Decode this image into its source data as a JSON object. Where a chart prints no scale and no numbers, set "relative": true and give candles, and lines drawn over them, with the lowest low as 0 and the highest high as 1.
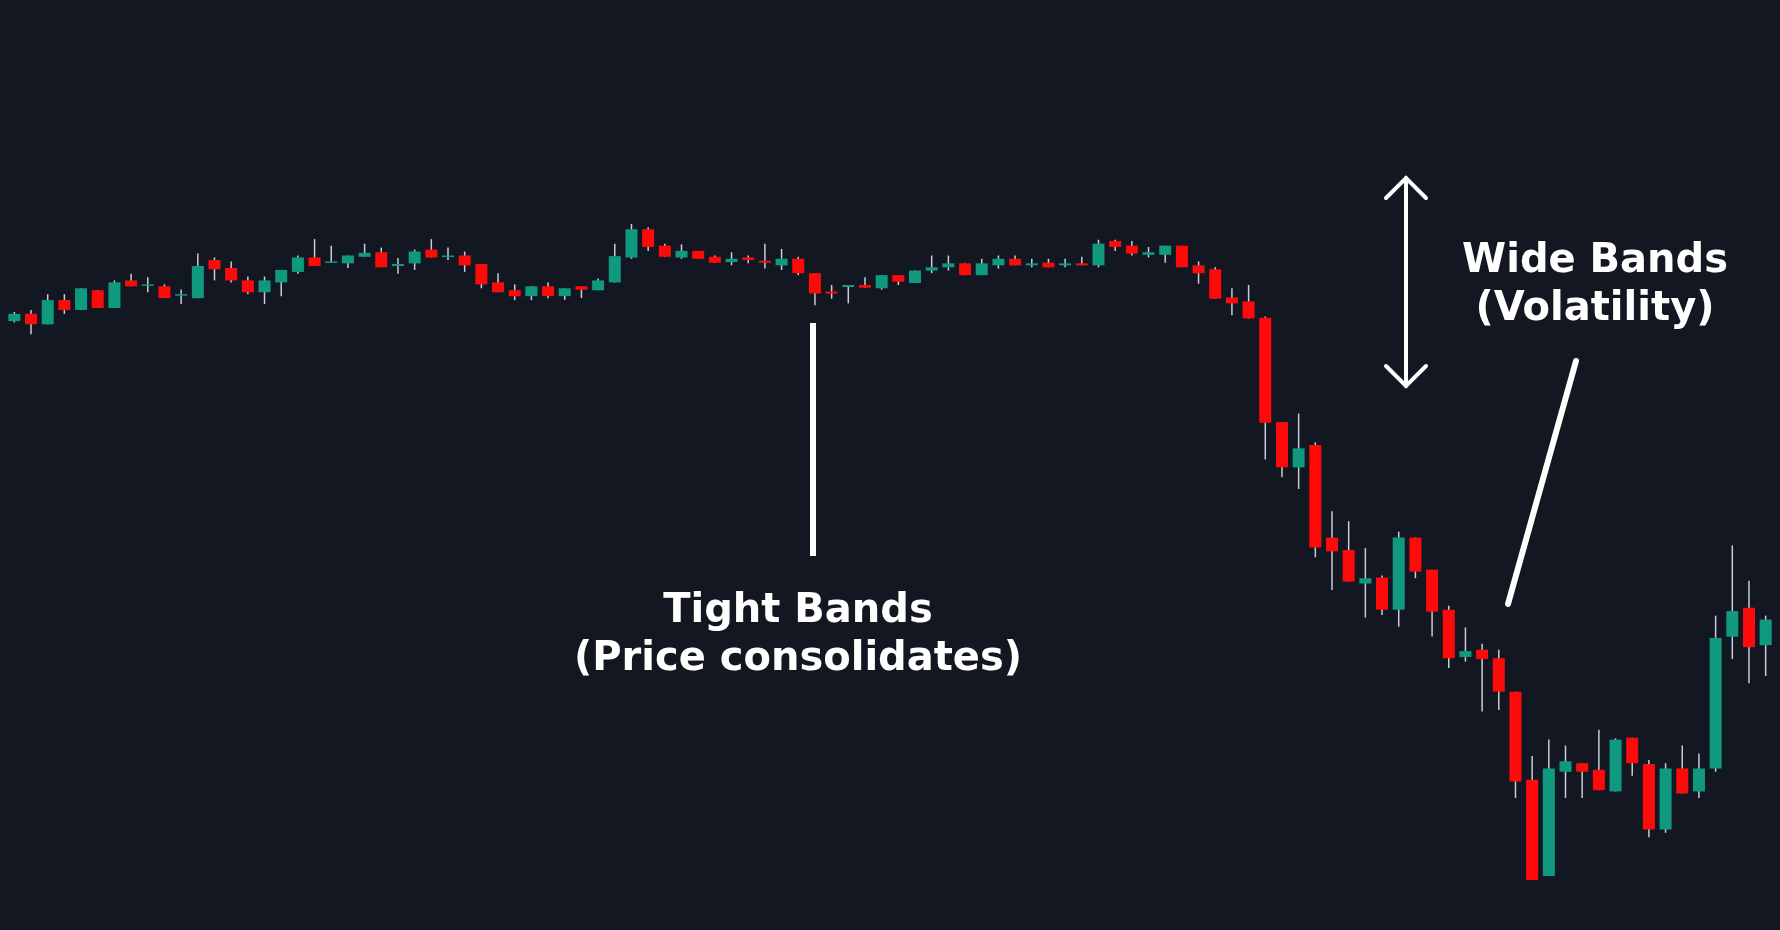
{
  "chart_data": {
    "type": "candlestick",
    "relative": true,
    "annotations": [
      "Tight Bands\n(Price consolidates)",
      "Wide Bands\n(Volatility)"
    ],
    "categories": [
      null,
      null,
      null,
      null,
      null,
      null,
      null,
      null,
      null,
      null,
      null,
      null,
      null,
      null,
      null,
      null,
      null,
      null,
      null,
      null,
      null,
      null,
      null,
      null,
      null,
      null,
      null,
      null,
      null,
      null,
      null,
      null,
      null,
      null,
      null,
      null,
      null,
      null,
      null,
      null,
      null,
      null,
      null,
      null,
      null,
      null,
      null,
      null,
      null,
      null,
      null,
      null,
      null,
      null,
      null,
      null,
      null,
      null,
      null,
      null,
      null,
      null,
      null,
      null,
      null,
      null,
      null,
      null,
      null,
      null,
      null,
      null,
      null,
      null,
      null,
      null,
      null,
      null,
      null,
      null,
      null,
      null,
      null,
      null,
      null,
      null,
      null,
      null,
      null,
      null,
      null,
      null,
      null,
      null,
      null,
      null,
      null,
      null,
      null,
      null,
      null,
      null,
      null,
      null,
      null,
      null
    ],
    "ohlc": [
      [
        0.852,
        0.866,
        0.85,
        0.863
      ],
      [
        0.863,
        0.869,
        0.832,
        0.847
      ],
      [
        0.847,
        0.893,
        0.847,
        0.884
      ],
      [
        0.884,
        0.893,
        0.863,
        0.869
      ],
      [
        0.869,
        0.902,
        0.869,
        0.902
      ],
      [
        0.899,
        0.899,
        0.872,
        0.872
      ],
      [
        0.872,
        0.914,
        0.872,
        0.911
      ],
      [
        0.914,
        0.924,
        0.905,
        0.905
      ],
      [
        0.906,
        0.919,
        0.896,
        0.908
      ],
      [
        0.905,
        0.908,
        0.887,
        0.887
      ],
      [
        0.891,
        0.9,
        0.878,
        0.893
      ],
      [
        0.887,
        0.955,
        0.887,
        0.936
      ],
      [
        0.945,
        0.949,
        0.914,
        0.931
      ],
      [
        0.933,
        0.943,
        0.911,
        0.914
      ],
      [
        0.914,
        0.92,
        0.893,
        0.896
      ],
      [
        0.896,
        0.92,
        0.878,
        0.914
      ],
      [
        0.911,
        0.93,
        0.89,
        0.93
      ],
      [
        0.927,
        0.952,
        0.924,
        0.949
      ],
      [
        0.949,
        0.977,
        0.936,
        0.936
      ],
      [
        0.941,
        0.967,
        0.941,
        0.943
      ],
      [
        0.94,
        0.952,
        0.933,
        0.952
      ],
      [
        0.95,
        0.97,
        0.95,
        0.956
      ],
      [
        0.957,
        0.964,
        0.934,
        0.934
      ],
      [
        0.936,
        0.948,
        0.924,
        0.939
      ],
      [
        0.94,
        0.961,
        0.93,
        0.958
      ],
      [
        0.961,
        0.977,
        0.949,
        0.949
      ],
      [
        0.95,
        0.964,
        0.945,
        0.952
      ],
      [
        0.952,
        0.958,
        0.927,
        0.937
      ],
      [
        0.939,
        0.939,
        0.902,
        0.908
      ],
      [
        0.911,
        0.925,
        0.896,
        0.896
      ],
      [
        0.899,
        0.908,
        0.884,
        0.89
      ],
      [
        0.89,
        0.905,
        0.884,
        0.905
      ],
      [
        0.905,
        0.911,
        0.887,
        0.89
      ],
      [
        0.89,
        0.902,
        0.884,
        0.902
      ],
      [
        0.905,
        0.905,
        0.887,
        0.9
      ],
      [
        0.899,
        0.917,
        0.899,
        0.914
      ],
      [
        0.911,
        0.97,
        0.911,
        0.951
      ],
      [
        0.949,
        1.0,
        0.947,
        0.992
      ],
      [
        0.992,
        0.995,
        0.959,
        0.965
      ],
      [
        0.967,
        0.97,
        0.95,
        0.95
      ],
      [
        0.949,
        0.969,
        0.947,
        0.959
      ],
      [
        0.959,
        0.959,
        0.947,
        0.947
      ],
      [
        0.95,
        0.952,
        0.941,
        0.941
      ],
      [
        0.942,
        0.957,
        0.937,
        0.947
      ],
      [
        0.949,
        0.952,
        0.94,
        0.945
      ],
      [
        0.944,
        0.97,
        0.932,
        0.941
      ],
      [
        0.937,
        0.962,
        0.93,
        0.947
      ],
      [
        0.947,
        0.95,
        0.922,
        0.925
      ],
      [
        0.925,
        0.925,
        0.876,
        0.894
      ],
      [
        0.897,
        0.907,
        0.886,
        0.894
      ],
      [
        0.904,
        0.907,
        0.879,
        0.907
      ],
      [
        0.907,
        0.919,
        0.903,
        0.903
      ],
      [
        0.902,
        0.922,
        0.9,
        0.922
      ],
      [
        0.922,
        0.922,
        0.907,
        0.912
      ],
      [
        0.91,
        0.929,
        0.91,
        0.929
      ],
      [
        0.929,
        0.952,
        0.925,
        0.934
      ],
      [
        0.934,
        0.952,
        0.929,
        0.94
      ],
      [
        0.94,
        0.94,
        0.922,
        0.922
      ],
      [
        0.922,
        0.947,
        0.922,
        0.94
      ],
      [
        0.937,
        0.952,
        0.932,
        0.947
      ],
      [
        0.947,
        0.952,
        0.937,
        0.937
      ],
      [
        0.937,
        0.947,
        0.934,
        0.94
      ],
      [
        0.941,
        0.947,
        0.934,
        0.934
      ],
      [
        0.937,
        0.947,
        0.934,
        0.94
      ],
      [
        0.94,
        0.95,
        0.937,
        0.937
      ],
      [
        0.937,
        0.976,
        0.934,
        0.97
      ],
      [
        0.974,
        0.976,
        0.959,
        0.965
      ],
      [
        0.967,
        0.974,
        0.952,
        0.955
      ],
      [
        0.953,
        0.965,
        0.949,
        0.957
      ],
      [
        0.953,
        0.967,
        0.941,
        0.967
      ],
      [
        0.967,
        0.967,
        0.934,
        0.934
      ],
      [
        0.937,
        0.943,
        0.909,
        0.925
      ],
      [
        0.931,
        0.934,
        0.886,
        0.886
      ],
      [
        0.888,
        0.902,
        0.861,
        0.879
      ],
      [
        0.882,
        0.907,
        0.856,
        0.856
      ],
      [
        0.857,
        0.859,
        0.641,
        0.697
      ],
      [
        0.698,
        0.698,
        0.614,
        0.629
      ],
      [
        0.629,
        0.711,
        0.596,
        0.658
      ],
      [
        0.663,
        0.667,
        0.492,
        0.507
      ],
      [
        0.522,
        0.562,
        0.442,
        0.501
      ],
      [
        0.503,
        0.547,
        0.455,
        0.455
      ],
      [
        0.452,
        0.506,
        0.4,
        0.46
      ],
      [
        0.461,
        0.464,
        0.404,
        0.412
      ],
      [
        0.412,
        0.531,
        0.386,
        0.522
      ],
      [
        0.522,
        0.522,
        0.46,
        0.47
      ],
      [
        0.473,
        0.473,
        0.371,
        0.409
      ],
      [
        0.412,
        0.418,
        0.323,
        0.338
      ],
      [
        0.34,
        0.385,
        0.333,
        0.349
      ],
      [
        0.351,
        0.36,
        0.257,
        0.337
      ],
      [
        0.338,
        0.351,
        0.259,
        0.287
      ],
      [
        0.287,
        0.287,
        0.125,
        0.15
      ],
      [
        0.153,
        0.189,
        0.0,
        0.0
      ],
      [
        0.006,
        0.214,
        0.006,
        0.17
      ],
      [
        0.165,
        0.205,
        0.125,
        0.181
      ],
      [
        0.178,
        0.178,
        0.125,
        0.165
      ],
      [
        0.168,
        0.229,
        0.137,
        0.137
      ],
      [
        0.135,
        0.216,
        0.135,
        0.214
      ],
      [
        0.217,
        0.217,
        0.159,
        0.178
      ],
      [
        0.177,
        0.183,
        0.065,
        0.077
      ],
      [
        0.077,
        0.178,
        0.072,
        0.17
      ],
      [
        0.17,
        0.205,
        0.132,
        0.132
      ],
      [
        0.135,
        0.193,
        0.125,
        0.17
      ],
      [
        0.17,
        0.403,
        0.165,
        0.369
      ],
      [
        0.371,
        0.51,
        0.337,
        0.41
      ],
      [
        0.415,
        0.456,
        0.3,
        0.355
      ],
      [
        0.358,
        0.403,
        0.311,
        0.397
      ]
    ]
  }
}
